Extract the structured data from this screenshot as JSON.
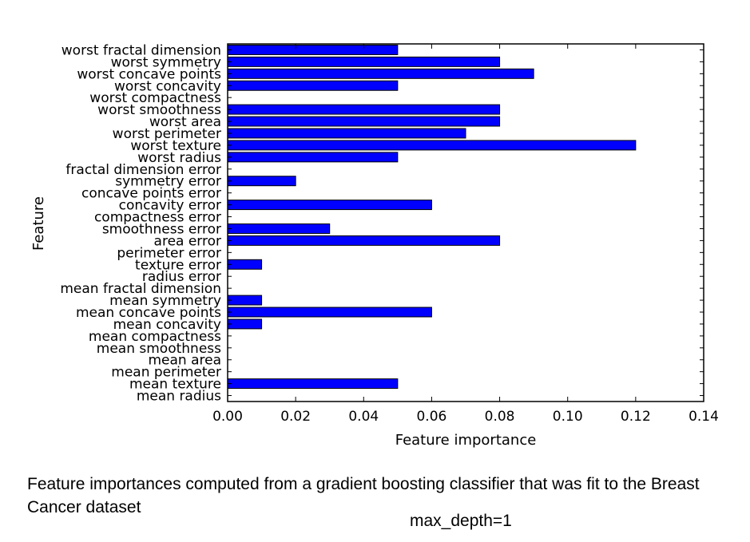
{
  "chart_data": {
    "type": "bar",
    "orientation": "horizontal",
    "title": "",
    "xlabel": "Feature importance",
    "ylabel": "Feature",
    "xlim": [
      0.0,
      0.14
    ],
    "xticks": [
      "0.00",
      "0.02",
      "0.04",
      "0.06",
      "0.08",
      "0.10",
      "0.12",
      "0.14"
    ],
    "grid": false,
    "bar_color": "#0000ff",
    "categories": [
      "mean radius",
      "mean texture",
      "mean perimeter",
      "mean area",
      "mean smoothness",
      "mean compactness",
      "mean concavity",
      "mean concave points",
      "mean symmetry",
      "mean fractal dimension",
      "radius error",
      "texture error",
      "perimeter error",
      "area error",
      "smoothness error",
      "compactness error",
      "concavity error",
      "concave points error",
      "symmetry error",
      "fractal dimension error",
      "worst radius",
      "worst texture",
      "worst perimeter",
      "worst area",
      "worst smoothness",
      "worst compactness",
      "worst concavity",
      "worst concave points",
      "worst symmetry",
      "worst fractal dimension"
    ],
    "values": [
      0.0,
      0.05,
      0.0,
      0.0,
      0.0,
      0.0,
      0.01,
      0.06,
      0.01,
      0.0,
      0.0,
      0.01,
      0.0,
      0.08,
      0.03,
      0.0,
      0.06,
      0.0,
      0.02,
      0.0,
      0.05,
      0.12,
      0.07,
      0.08,
      0.08,
      0.0,
      0.05,
      0.09,
      0.08,
      0.05
    ]
  },
  "caption": {
    "text": "Feature importances computed from a gradient boosting classifier that was fit to the Breast Cancer dataset",
    "note": "max_depth=1"
  }
}
